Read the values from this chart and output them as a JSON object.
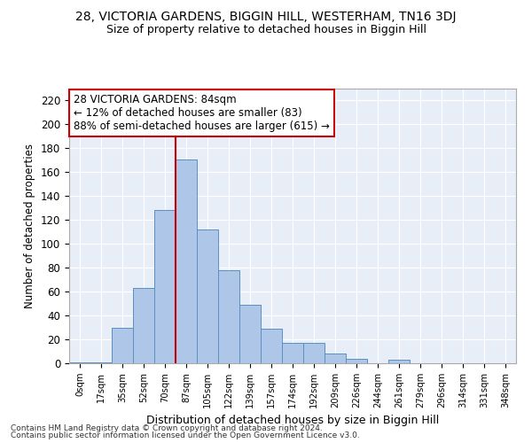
{
  "title": "28, VICTORIA GARDENS, BIGGIN HILL, WESTERHAM, TN16 3DJ",
  "subtitle": "Size of property relative to detached houses in Biggin Hill",
  "xlabel": "Distribution of detached houses by size in Biggin Hill",
  "ylabel": "Number of detached properties",
  "bin_labels": [
    "0sqm",
    "17sqm",
    "35sqm",
    "52sqm",
    "70sqm",
    "87sqm",
    "105sqm",
    "122sqm",
    "139sqm",
    "157sqm",
    "174sqm",
    "192sqm",
    "209sqm",
    "226sqm",
    "244sqm",
    "261sqm",
    "279sqm",
    "296sqm",
    "314sqm",
    "331sqm",
    "348sqm"
  ],
  "bar_heights": [
    1,
    1,
    30,
    63,
    128,
    171,
    112,
    78,
    49,
    29,
    17,
    17,
    8,
    4,
    0,
    3,
    0,
    0,
    0,
    0,
    0
  ],
  "bar_color": "#aec6e8",
  "bar_edge_color": "#5a8fc0",
  "vline_x": 5.0,
  "vline_color": "#cc0000",
  "annotation_text": "28 VICTORIA GARDENS: 84sqm\n← 12% of detached houses are smaller (83)\n88% of semi-detached houses are larger (615) →",
  "annotation_box_color": "#ffffff",
  "annotation_box_edge_color": "#cc0000",
  "ylim": [
    0,
    230
  ],
  "yticks": [
    0,
    20,
    40,
    60,
    80,
    100,
    120,
    140,
    160,
    180,
    200,
    220
  ],
  "background_color": "#e8eef8",
  "footer_line1": "Contains HM Land Registry data © Crown copyright and database right 2024.",
  "footer_line2": "Contains public sector information licensed under the Open Government Licence v3.0.",
  "title_fontsize": 10,
  "subtitle_fontsize": 9,
  "annotation_fontsize": 8.5
}
